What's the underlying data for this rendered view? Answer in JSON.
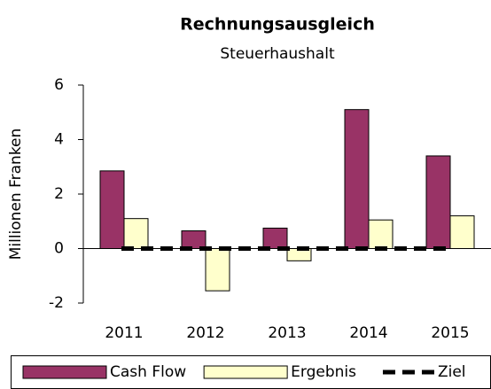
{
  "chart_data": {
    "type": "bar",
    "title": "Rechnungsausgleich",
    "subtitle": "Steuerhaushalt",
    "y_label": "Millionen Franken",
    "categories": [
      "2011",
      "2012",
      "2013",
      "2014",
      "2015"
    ],
    "series": [
      {
        "name": "Cash Flow",
        "color": "#993366",
        "values": [
          2.85,
          0.65,
          0.75,
          5.1,
          3.4
        ]
      },
      {
        "name": "Ergebnis",
        "color": "#FFFFCC",
        "values": [
          1.1,
          -1.55,
          -0.45,
          1.05,
          1.2
        ]
      },
      {
        "name": "Ziel",
        "type": "line",
        "color": "#000000",
        "values": [
          0,
          0,
          0,
          0,
          0
        ]
      }
    ],
    "ylim": [
      -2,
      6
    ],
    "yticks": [
      -2,
      0,
      2,
      4,
      6
    ],
    "grid": false,
    "legend": "bottom"
  }
}
